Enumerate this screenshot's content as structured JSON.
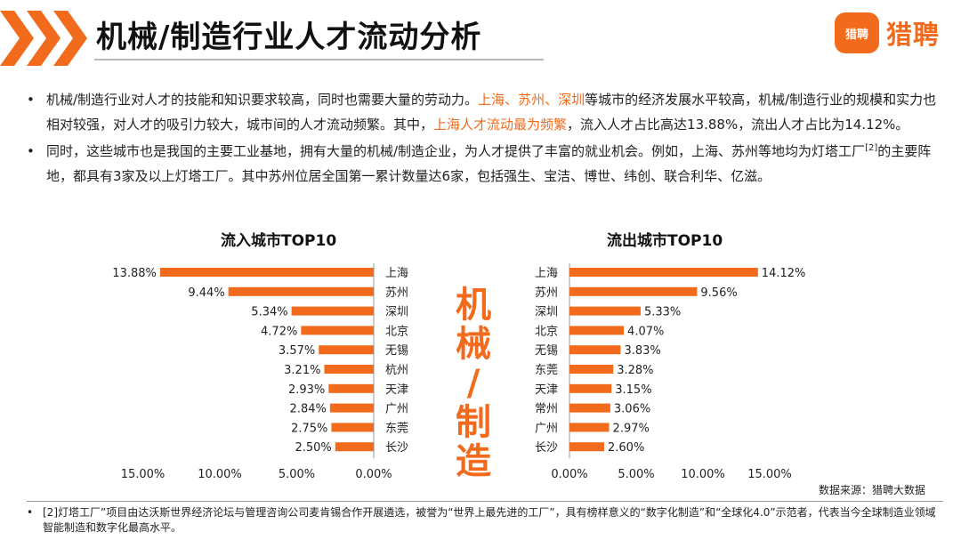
{
  "header": {
    "title": "机械/制造行业人才流动分析",
    "logo_badge": "猎聘",
    "logo_text": "猎聘"
  },
  "bullets": {
    "b1_part1": "机械/制造行业对人才的技能和知识要求较高，同时也需要大量的劳动力。",
    "b1_hl1": "上海、苏州、深圳",
    "b1_part2": "等城市的经济发展水平较高，机械/制造行业的规模和实力也相对较强，对人才的吸引力较大，城市间的人才流动频繁。其中，",
    "b1_hl2": "上海人才流动最为频繁",
    "b1_part3": "，流入人才占比高达13.88%，流出人才占比为14.12%。",
    "b2_part1": "同时，这些城市也是我国的主要工业基地，拥有大量的机械/制造企业，为人才提供了丰富的就业机会。例如，上海、苏州等地均为灯塔工厂",
    "b2_sup": "[2]",
    "b2_part2": "的主要阵地，都具有3家及以上灯塔工厂。其中苏州位居全国第一累计数量达6家，包括强生、宝洁、博世、纬创、联合利华、亿滋。"
  },
  "center_word": [
    "机",
    "械",
    "/",
    "制",
    "造"
  ],
  "source": "数据来源：猎聘大数据",
  "footnote": "[2]灯塔工厂”项目由达沃斯世界经济论坛与管理咨询公司麦肯锡合作开展遴选，被誉为“世界上最先进的工厂”，具有榜样意义的“数字化制造”和“全球化4.0”示范者，代表当今全球制造业领域智能制造和数字化最高水平。",
  "colors": {
    "accent": "#f26a1b"
  },
  "chart_data": [
    {
      "type": "bar",
      "orientation": "horizontal",
      "direction": "reversed",
      "title": "流入城市TOP10",
      "categories": [
        "上海",
        "苏州",
        "深圳",
        "北京",
        "无锡",
        "杭州",
        "天津",
        "广州",
        "东莞",
        "长沙"
      ],
      "values": [
        13.88,
        9.44,
        5.34,
        4.72,
        3.57,
        3.21,
        2.93,
        2.84,
        2.75,
        2.5
      ],
      "value_labels": [
        "13.88%",
        "9.44%",
        "5.34%",
        "4.72%",
        "3.57%",
        "3.21%",
        "2.93%",
        "2.84%",
        "2.75%",
        "2.50%"
      ],
      "xlim": [
        0,
        15
      ],
      "ticks": [
        "15.00%",
        "10.00%",
        "5.00%",
        "0.00%"
      ],
      "grid": false
    },
    {
      "type": "bar",
      "orientation": "horizontal",
      "title": "流出城市TOP10",
      "categories": [
        "上海",
        "苏州",
        "深圳",
        "北京",
        "无锡",
        "东莞",
        "天津",
        "常州",
        "广州",
        "长沙"
      ],
      "values": [
        14.12,
        9.56,
        5.33,
        4.07,
        3.83,
        3.28,
        3.15,
        3.06,
        2.97,
        2.6
      ],
      "value_labels": [
        "14.12%",
        "9.56%",
        "5.33%",
        "4.07%",
        "3.83%",
        "3.28%",
        "3.15%",
        "3.06%",
        "2.97%",
        "2.60%"
      ],
      "xlim": [
        0,
        15
      ],
      "ticks": [
        "0.00%",
        "5.00%",
        "10.00%",
        "15.00%"
      ],
      "grid": false
    }
  ]
}
